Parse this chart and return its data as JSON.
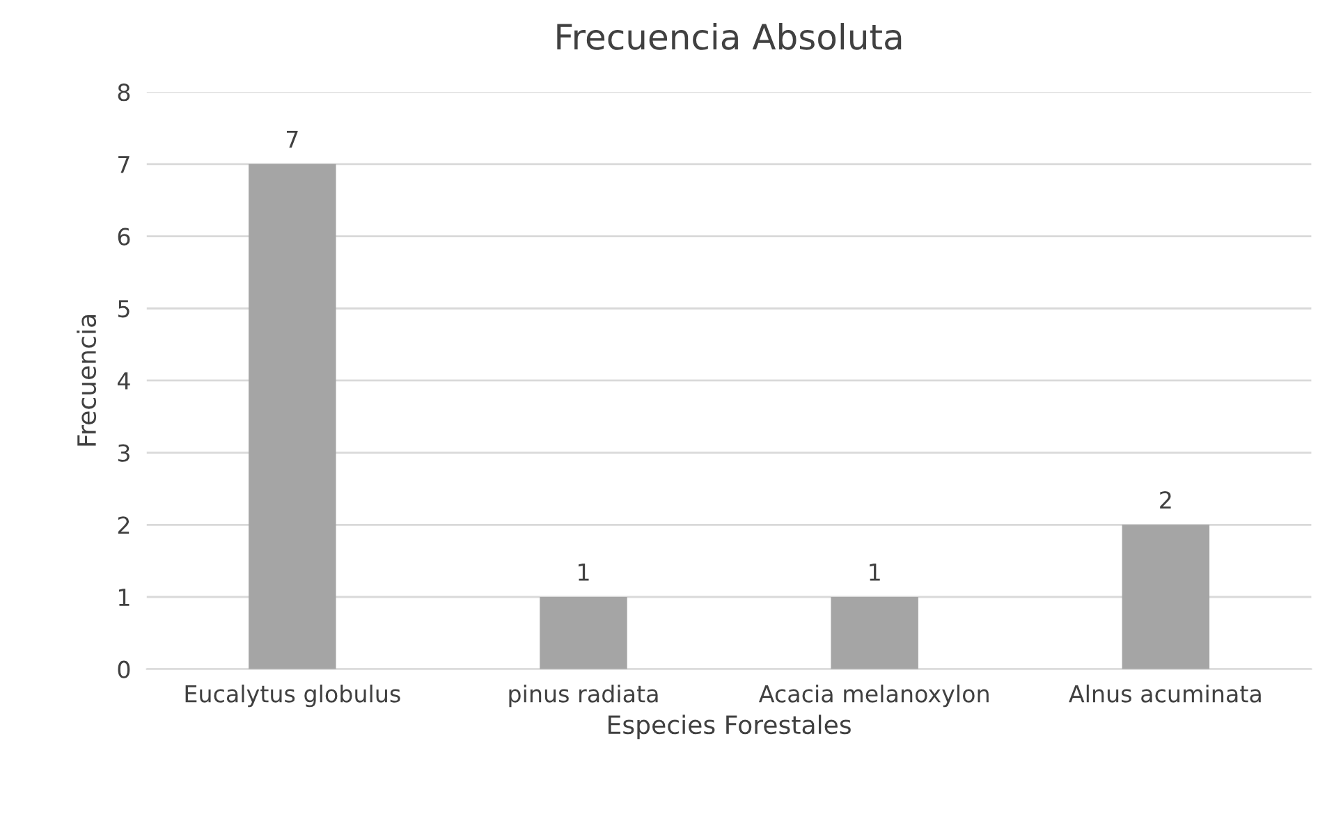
{
  "chart_data": {
    "type": "bar",
    "title": "Frecuencia Absoluta",
    "xlabel": "Especies Forestales",
    "ylabel": "Frecuencia",
    "categories": [
      "Eucalytus globulus",
      "pinus radiata",
      "Acacia melanoxylon",
      "Alnus acuminata"
    ],
    "values": [
      7,
      1,
      1,
      2
    ],
    "color": "#a5a5a5",
    "ylim": [
      0,
      8
    ],
    "yticks": [
      0,
      1,
      2,
      3,
      4,
      5,
      6,
      7,
      8
    ],
    "grid": "y",
    "data_labels": true
  }
}
